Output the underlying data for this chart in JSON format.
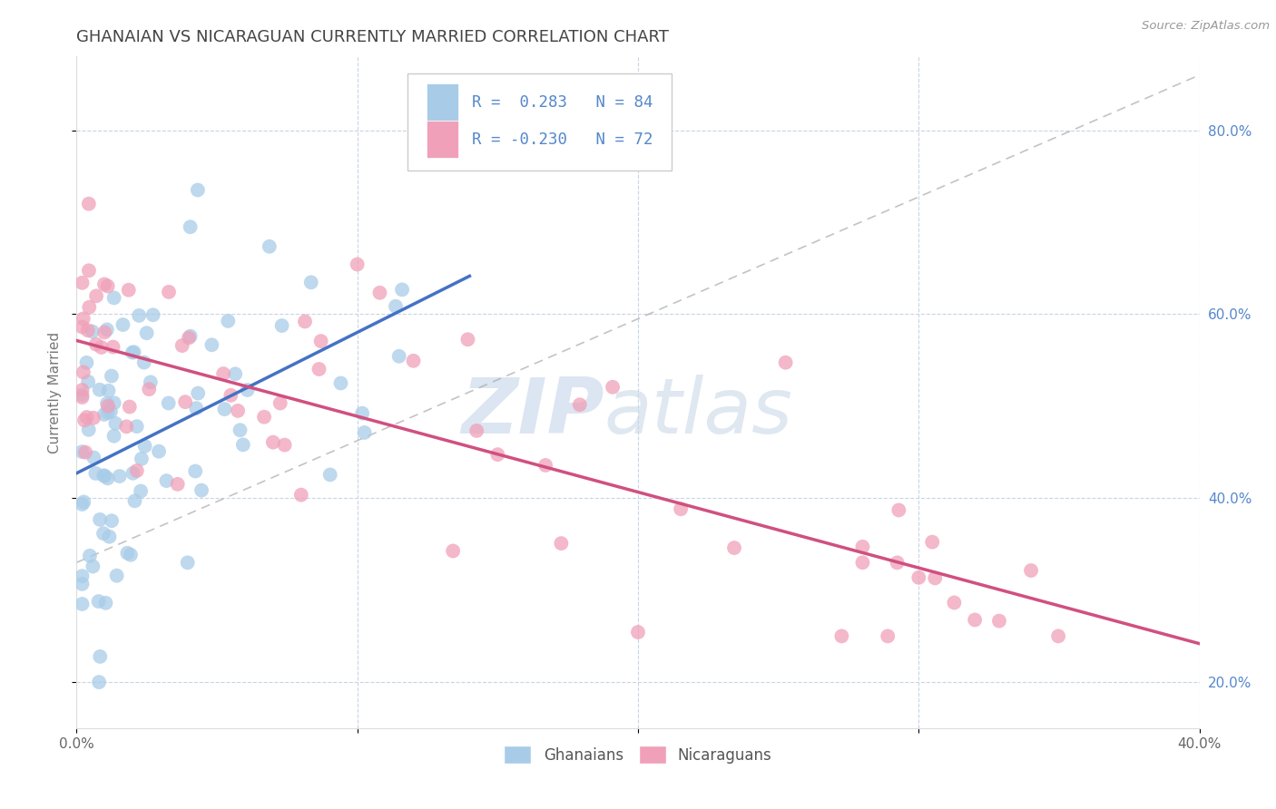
{
  "title": "GHANAIAN VS NICARAGUAN CURRENTLY MARRIED CORRELATION CHART",
  "source_text": "Source: ZipAtlas.com",
  "ylabel": "Currently Married",
  "xlim": [
    0.0,
    0.4
  ],
  "ylim": [
    0.15,
    0.88
  ],
  "xticks": [
    0.0,
    0.1,
    0.2,
    0.3,
    0.4
  ],
  "xticklabels": [
    "0.0%",
    "",
    "",
    "",
    "40.0%"
  ],
  "yticks": [
    0.2,
    0.4,
    0.6,
    0.8
  ],
  "yticklabels": [
    "20.0%",
    "40.0%",
    "60.0%",
    "80.0%"
  ],
  "ghanaian_color": "#a8cce8",
  "nicaraguan_color": "#f0a0b8",
  "trend_blue": "#4472c4",
  "trend_pink": "#d05080",
  "ref_line_color": "#aaaaaa",
  "background_color": "#ffffff",
  "grid_color": "#c8d4e8",
  "legend_R1": "0.283",
  "legend_N1": "84",
  "legend_R2": "-0.230",
  "legend_N2": "72",
  "legend_label1": "Ghanaians",
  "legend_label2": "Nicaraguans",
  "watermark_zip": "ZIP",
  "watermark_atlas": "atlas",
  "tick_color": "#5588cc",
  "title_color": "#444444",
  "ylabel_color": "#777777"
}
